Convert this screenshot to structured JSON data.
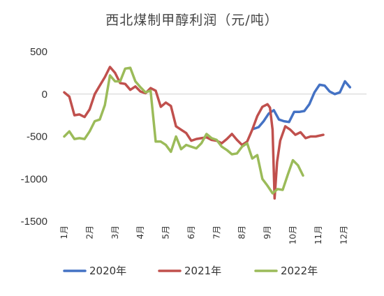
{
  "chart_data": {
    "type": "line",
    "title": "西北煤制甲醇利润（元/吨）",
    "xlabel": "",
    "ylabel": "",
    "ylim": [
      -1500,
      500
    ],
    "yticks": [
      500,
      0,
      -500,
      -1000,
      -1500
    ],
    "ytick_labels": [
      "500",
      "0",
      "-500",
      "-1000",
      "-1500"
    ],
    "month_labels": [
      "1月",
      "2月",
      "3月",
      "4月",
      "5月",
      "6月",
      "7月",
      "8月",
      "9月",
      "10月",
      "11月",
      "12月"
    ],
    "x_range": [
      1,
      12.9
    ],
    "grid": false,
    "legend_position": "bottom",
    "series": [
      {
        "name": "2020年",
        "color": "#4472C4",
        "points": [
          [
            8.45,
            -410
          ],
          [
            8.65,
            -390
          ],
          [
            8.85,
            -320
          ],
          [
            9.05,
            -230
          ],
          [
            9.25,
            -190
          ],
          [
            9.45,
            -300
          ],
          [
            9.65,
            -320
          ],
          [
            9.85,
            -330
          ],
          [
            10.05,
            -210
          ],
          [
            10.25,
            -210
          ],
          [
            10.45,
            -200
          ],
          [
            10.65,
            -120
          ],
          [
            10.85,
            20
          ],
          [
            11.05,
            110
          ],
          [
            11.25,
            100
          ],
          [
            11.45,
            30
          ],
          [
            11.65,
            0
          ],
          [
            11.85,
            20
          ],
          [
            12.05,
            150
          ],
          [
            12.25,
            80
          ]
        ]
      },
      {
        "name": "2021年",
        "color": "#C0504D",
        "points": [
          [
            1.0,
            20
          ],
          [
            1.2,
            -30
          ],
          [
            1.4,
            -250
          ],
          [
            1.6,
            -240
          ],
          [
            1.8,
            -270
          ],
          [
            2.0,
            -180
          ],
          [
            2.2,
            0
          ],
          [
            2.4,
            100
          ],
          [
            2.6,
            200
          ],
          [
            2.8,
            320
          ],
          [
            3.0,
            250
          ],
          [
            3.2,
            130
          ],
          [
            3.4,
            120
          ],
          [
            3.6,
            50
          ],
          [
            3.8,
            90
          ],
          [
            4.0,
            30
          ],
          [
            4.2,
            10
          ],
          [
            4.4,
            70
          ],
          [
            4.6,
            40
          ],
          [
            4.8,
            -150
          ],
          [
            5.0,
            -100
          ],
          [
            5.2,
            -140
          ],
          [
            5.4,
            -380
          ],
          [
            5.6,
            -420
          ],
          [
            5.8,
            -460
          ],
          [
            6.0,
            -550
          ],
          [
            6.2,
            -530
          ],
          [
            6.4,
            -520
          ],
          [
            6.6,
            -510
          ],
          [
            6.8,
            -540
          ],
          [
            7.0,
            -550
          ],
          [
            7.2,
            -580
          ],
          [
            7.4,
            -530
          ],
          [
            7.6,
            -470
          ],
          [
            7.8,
            -540
          ],
          [
            8.0,
            -600
          ],
          [
            8.2,
            -560
          ],
          [
            8.4,
            -420
          ],
          [
            8.6,
            -260
          ],
          [
            8.8,
            -150
          ],
          [
            9.0,
            -120
          ],
          [
            9.1,
            -160
          ],
          [
            9.2,
            -420
          ],
          [
            9.28,
            -1230
          ],
          [
            9.38,
            -800
          ],
          [
            9.5,
            -550
          ],
          [
            9.7,
            -380
          ],
          [
            9.9,
            -420
          ],
          [
            10.1,
            -480
          ],
          [
            10.3,
            -450
          ],
          [
            10.5,
            -520
          ],
          [
            10.7,
            -500
          ],
          [
            10.9,
            -500
          ],
          [
            11.2,
            -480
          ]
        ]
      },
      {
        "name": "2022年",
        "color": "#9BBB59",
        "points": [
          [
            1.0,
            -500
          ],
          [
            1.2,
            -440
          ],
          [
            1.4,
            -530
          ],
          [
            1.6,
            -520
          ],
          [
            1.8,
            -530
          ],
          [
            2.0,
            -440
          ],
          [
            2.2,
            -320
          ],
          [
            2.4,
            -300
          ],
          [
            2.6,
            -130
          ],
          [
            2.8,
            220
          ],
          [
            3.0,
            150
          ],
          [
            3.2,
            150
          ],
          [
            3.4,
            300
          ],
          [
            3.6,
            310
          ],
          [
            3.8,
            150
          ],
          [
            4.0,
            80
          ],
          [
            4.2,
            20
          ],
          [
            4.4,
            40
          ],
          [
            4.6,
            -560
          ],
          [
            4.8,
            -560
          ],
          [
            5.0,
            -600
          ],
          [
            5.2,
            -680
          ],
          [
            5.4,
            -500
          ],
          [
            5.6,
            -650
          ],
          [
            5.8,
            -600
          ],
          [
            6.0,
            -620
          ],
          [
            6.2,
            -640
          ],
          [
            6.4,
            -580
          ],
          [
            6.6,
            -470
          ],
          [
            6.8,
            -520
          ],
          [
            7.0,
            -540
          ],
          [
            7.2,
            -620
          ],
          [
            7.4,
            -660
          ],
          [
            7.6,
            -710
          ],
          [
            7.8,
            -700
          ],
          [
            8.0,
            -620
          ],
          [
            8.2,
            -580
          ],
          [
            8.4,
            -760
          ],
          [
            8.6,
            -720
          ],
          [
            8.8,
            -1000
          ],
          [
            9.0,
            -1080
          ],
          [
            9.2,
            -1170
          ],
          [
            9.4,
            -1120
          ],
          [
            9.6,
            -1130
          ],
          [
            9.8,
            -950
          ],
          [
            10.0,
            -780
          ],
          [
            10.2,
            -840
          ],
          [
            10.4,
            -960
          ]
        ]
      }
    ]
  }
}
